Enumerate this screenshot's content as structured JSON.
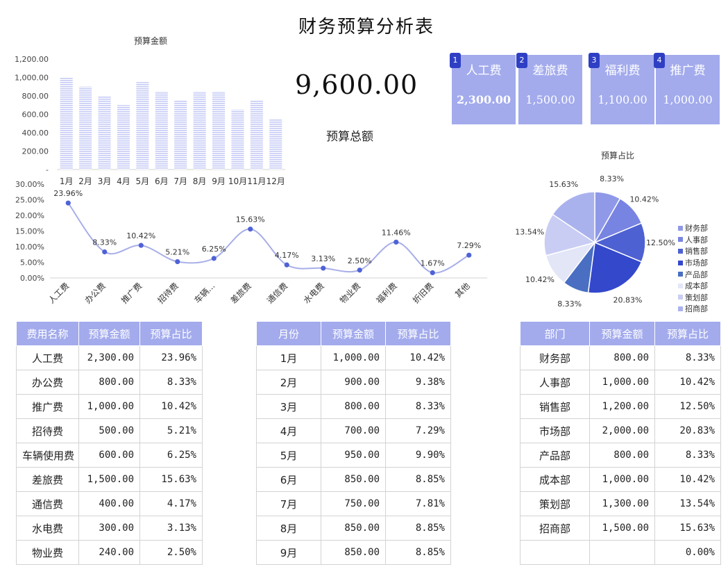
{
  "title": "财务预算分析表",
  "total": {
    "value": "9,600.00",
    "label": "预算总额"
  },
  "cards": [
    {
      "badge": "1",
      "name": "人工费",
      "value": "2,300.00"
    },
    {
      "badge": "2",
      "name": "差旅费",
      "value": "1,500.00"
    },
    {
      "badge": "3",
      "name": "福利费",
      "value": "1,100.00"
    },
    {
      "badge": "4",
      "name": "推广费",
      "value": "1,000.00"
    }
  ],
  "colors": {
    "accent": "#a3abed",
    "bar": "#c5caf5",
    "line": "#a7aee8",
    "dot": "#4f62d6",
    "badge": "#2f3fc4"
  },
  "chart_data": [
    {
      "type": "bar",
      "title": "预算金额",
      "categories": [
        "1月",
        "2月",
        "3月",
        "4月",
        "5月",
        "6月",
        "7月",
        "8月",
        "9月",
        "10月",
        "11月",
        "12月"
      ],
      "values": [
        1000,
        900,
        800,
        700,
        950,
        850,
        750,
        850,
        850,
        650,
        750,
        550
      ],
      "ylim": [
        0,
        1200
      ],
      "yticks": [
        "1,200.00",
        "1,000.00",
        "800.00",
        "600.00",
        "400.00",
        "200.00",
        "-"
      ]
    },
    {
      "type": "line",
      "categories": [
        "人工费",
        "办公费",
        "推广费",
        "招待费",
        "车辆...",
        "差旅费",
        "通信费",
        "水电费",
        "物业费",
        "福利费",
        "折旧费",
        "其他"
      ],
      "values": [
        23.96,
        8.33,
        10.42,
        5.21,
        6.25,
        15.63,
        4.17,
        3.13,
        2.5,
        11.46,
        1.67,
        7.29
      ],
      "labels": [
        "23.96%",
        "8.33%",
        "10.42%",
        "5.21%",
        "6.25%",
        "15.63%",
        "4.17%",
        "3.13%",
        "2.50%",
        "11.46%",
        "1.67%",
        "7.29%"
      ],
      "ylim": [
        0,
        30
      ],
      "yticks": [
        "30.00%",
        "25.00%",
        "20.00%",
        "15.00%",
        "10.00%",
        "5.00%",
        "0.00%"
      ]
    },
    {
      "type": "pie",
      "title": "预算占比",
      "categories": [
        "财务部",
        "人事部",
        "销售部",
        "市场部",
        "产品部",
        "成本部",
        "策划部",
        "招商部"
      ],
      "values": [
        8.33,
        10.42,
        12.5,
        20.83,
        8.33,
        10.42,
        13.54,
        15.63
      ],
      "labels": [
        "8.33%",
        "10.42%",
        "12.50%",
        "20.83%",
        "8.33%",
        "10.42%",
        "13.54%",
        "15.63%"
      ],
      "colors": [
        "#8f99e8",
        "#7884e2",
        "#4e61d2",
        "#3448cc",
        "#4a6fc2",
        "#e3e6f7",
        "#c9cdf3",
        "#aab2ee"
      ],
      "legend": "right"
    }
  ],
  "tables": {
    "expense": {
      "headers": [
        "费用名称",
        "预算金额",
        "预算占比"
      ],
      "rows": [
        [
          "人工费",
          "2,300.00",
          "23.96%"
        ],
        [
          "办公费",
          "800.00",
          "8.33%"
        ],
        [
          "推广费",
          "1,000.00",
          "10.42%"
        ],
        [
          "招待费",
          "500.00",
          "5.21%"
        ],
        [
          "车辆使用费",
          "600.00",
          "6.25%"
        ],
        [
          "差旅费",
          "1,500.00",
          "15.63%"
        ],
        [
          "通信费",
          "400.00",
          "4.17%"
        ],
        [
          "水电费",
          "300.00",
          "3.13%"
        ],
        [
          "物业费",
          "240.00",
          "2.50%"
        ]
      ]
    },
    "month": {
      "headers": [
        "月份",
        "预算金额",
        "预算占比"
      ],
      "rows": [
        [
          "1月",
          "1,000.00",
          "10.42%"
        ],
        [
          "2月",
          "900.00",
          "9.38%"
        ],
        [
          "3月",
          "800.00",
          "8.33%"
        ],
        [
          "4月",
          "700.00",
          "7.29%"
        ],
        [
          "5月",
          "950.00",
          "9.90%"
        ],
        [
          "6月",
          "850.00",
          "8.85%"
        ],
        [
          "7月",
          "750.00",
          "7.81%"
        ],
        [
          "8月",
          "850.00",
          "8.85%"
        ],
        [
          "9月",
          "850.00",
          "8.85%"
        ]
      ]
    },
    "dept": {
      "headers": [
        "部门",
        "预算金额",
        "预算占比"
      ],
      "rows": [
        [
          "财务部",
          "800.00",
          "8.33%"
        ],
        [
          "人事部",
          "1,000.00",
          "10.42%"
        ],
        [
          "销售部",
          "1,200.00",
          "12.50%"
        ],
        [
          "市场部",
          "2,000.00",
          "20.83%"
        ],
        [
          "产品部",
          "800.00",
          "8.33%"
        ],
        [
          "成本部",
          "1,000.00",
          "10.42%"
        ],
        [
          "策划部",
          "1,300.00",
          "13.54%"
        ],
        [
          "招商部",
          "1,500.00",
          "15.63%"
        ],
        [
          "",
          "",
          "0.00%"
        ]
      ]
    }
  }
}
